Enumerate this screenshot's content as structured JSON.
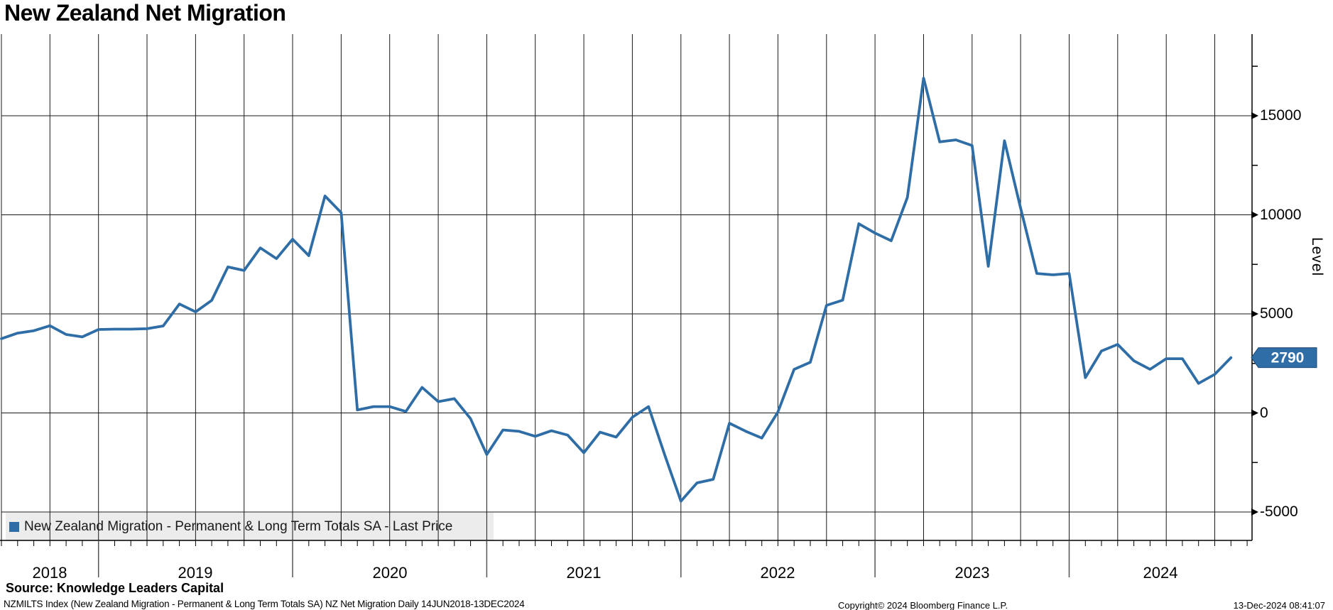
{
  "title": "New Zealand Net Migration",
  "legend": {
    "label": "New Zealand Migration - Permanent & Long Term Totals SA - Last Price",
    "marker_color": "#2e6da6"
  },
  "y_axis": {
    "title": "Level",
    "major_ticks": [
      15000,
      10000,
      5000,
      0,
      -5000
    ],
    "minor_ticks": [
      17500,
      12500,
      7500,
      2500,
      -2500
    ],
    "last_price_badge": "2790",
    "badge_color": "#2e6da6"
  },
  "x_axis": {
    "year_labels": [
      "2018",
      "2019",
      "2020",
      "2021",
      "2022",
      "2023",
      "2024"
    ]
  },
  "footer": {
    "source": "Source: Knowledge Leaders Capital",
    "ticker_line": "NZMILTS Index (New Zealand Migration - Permanent & Long Term Totals SA) NZ Net Migration  Daily 14JUN2018-13DEC2024",
    "copyright": "Copyright© 2024 Bloomberg Finance L.P.",
    "timestamp": "13-Dec-2024 08:41:07"
  },
  "colors": {
    "line": "#2e6da6",
    "grid": "#1a1a1a",
    "legend_bg": "#ececec",
    "badge_text": "#ffffff"
  },
  "chart_data": {
    "type": "line",
    "title": "New Zealand Net Migration",
    "xlabel": "",
    "ylabel": "Level",
    "x_start": "2018-06",
    "x_end": "2024-10",
    "frequency": "monthly",
    "ylim": [
      -6430,
      19120
    ],
    "grid": "x: quarterly, y: every 5000",
    "legend_position": "bottom-left",
    "series": [
      {
        "name": "New Zealand Migration - Permanent & Long Term Totals SA - Last Price",
        "color": "#2e6da6",
        "last_price": 2790,
        "values": [
          3750,
          4030,
          4150,
          4400,
          3960,
          3840,
          4210,
          4230,
          4230,
          4250,
          4390,
          5500,
          5100,
          5680,
          7370,
          7190,
          8330,
          7790,
          8770,
          7940,
          10950,
          10110,
          150,
          320,
          320,
          70,
          1290,
          570,
          720,
          -290,
          -2100,
          -860,
          -930,
          -1180,
          -900,
          -1120,
          -2010,
          -970,
          -1220,
          -220,
          320,
          -2120,
          -4450,
          -3530,
          -3350,
          -520,
          -920,
          -1270,
          50,
          2200,
          2560,
          5430,
          5690,
          9550,
          9080,
          8690,
          10880,
          16900,
          13680,
          13780,
          13500,
          7400,
          13740,
          10340,
          7040,
          6970,
          7040,
          1780,
          3130,
          3460,
          2630,
          2200,
          2740,
          2740,
          1490,
          1950,
          2790
        ]
      }
    ]
  }
}
